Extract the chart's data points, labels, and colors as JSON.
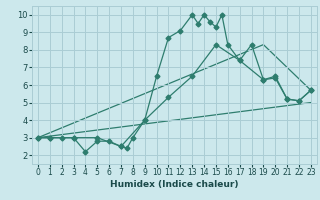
{
  "background_color": "#cce8ec",
  "grid_color": "#aacdd4",
  "line_color": "#2e7d6e",
  "xlabel": "Humidex (Indice chaleur)",
  "xlim": [
    -0.5,
    23.5
  ],
  "ylim": [
    1.5,
    10.5
  ],
  "xticks": [
    0,
    1,
    2,
    3,
    4,
    5,
    6,
    7,
    8,
    9,
    10,
    11,
    12,
    13,
    14,
    15,
    16,
    17,
    18,
    19,
    20,
    21,
    22,
    23
  ],
  "yticks": [
    2,
    3,
    4,
    5,
    6,
    7,
    8,
    9,
    10
  ],
  "line1_x": [
    0,
    1,
    2,
    3,
    4,
    5,
    6,
    7,
    7.5,
    8,
    9,
    10,
    11,
    12,
    13,
    13.5,
    14,
    14.5,
    15,
    15.5,
    16,
    17,
    18,
    19,
    20,
    21,
    22,
    23
  ],
  "line1_y": [
    3.0,
    3.0,
    3.0,
    3.0,
    2.2,
    2.8,
    2.8,
    2.5,
    2.4,
    3.0,
    4.0,
    6.5,
    8.7,
    9.1,
    10.0,
    9.5,
    10.0,
    9.6,
    9.3,
    10.0,
    8.3,
    7.4,
    8.3,
    6.3,
    6.5,
    5.2,
    5.1,
    5.7
  ],
  "line2_x": [
    0,
    1,
    3,
    5,
    7,
    9,
    11,
    13,
    15,
    17,
    19,
    20,
    21,
    22,
    23
  ],
  "line2_y": [
    3.0,
    3.0,
    3.0,
    3.0,
    2.5,
    4.0,
    5.3,
    6.5,
    8.3,
    7.4,
    6.3,
    6.4,
    5.2,
    5.1,
    5.7
  ],
  "line3_x": [
    0,
    19,
    23
  ],
  "line3_y": [
    3.0,
    8.3,
    5.7
  ],
  "line4_x": [
    0,
    23
  ],
  "line4_y": [
    3.0,
    5.0
  ],
  "marker": "D",
  "markersize": 2.5,
  "linewidth": 0.9
}
